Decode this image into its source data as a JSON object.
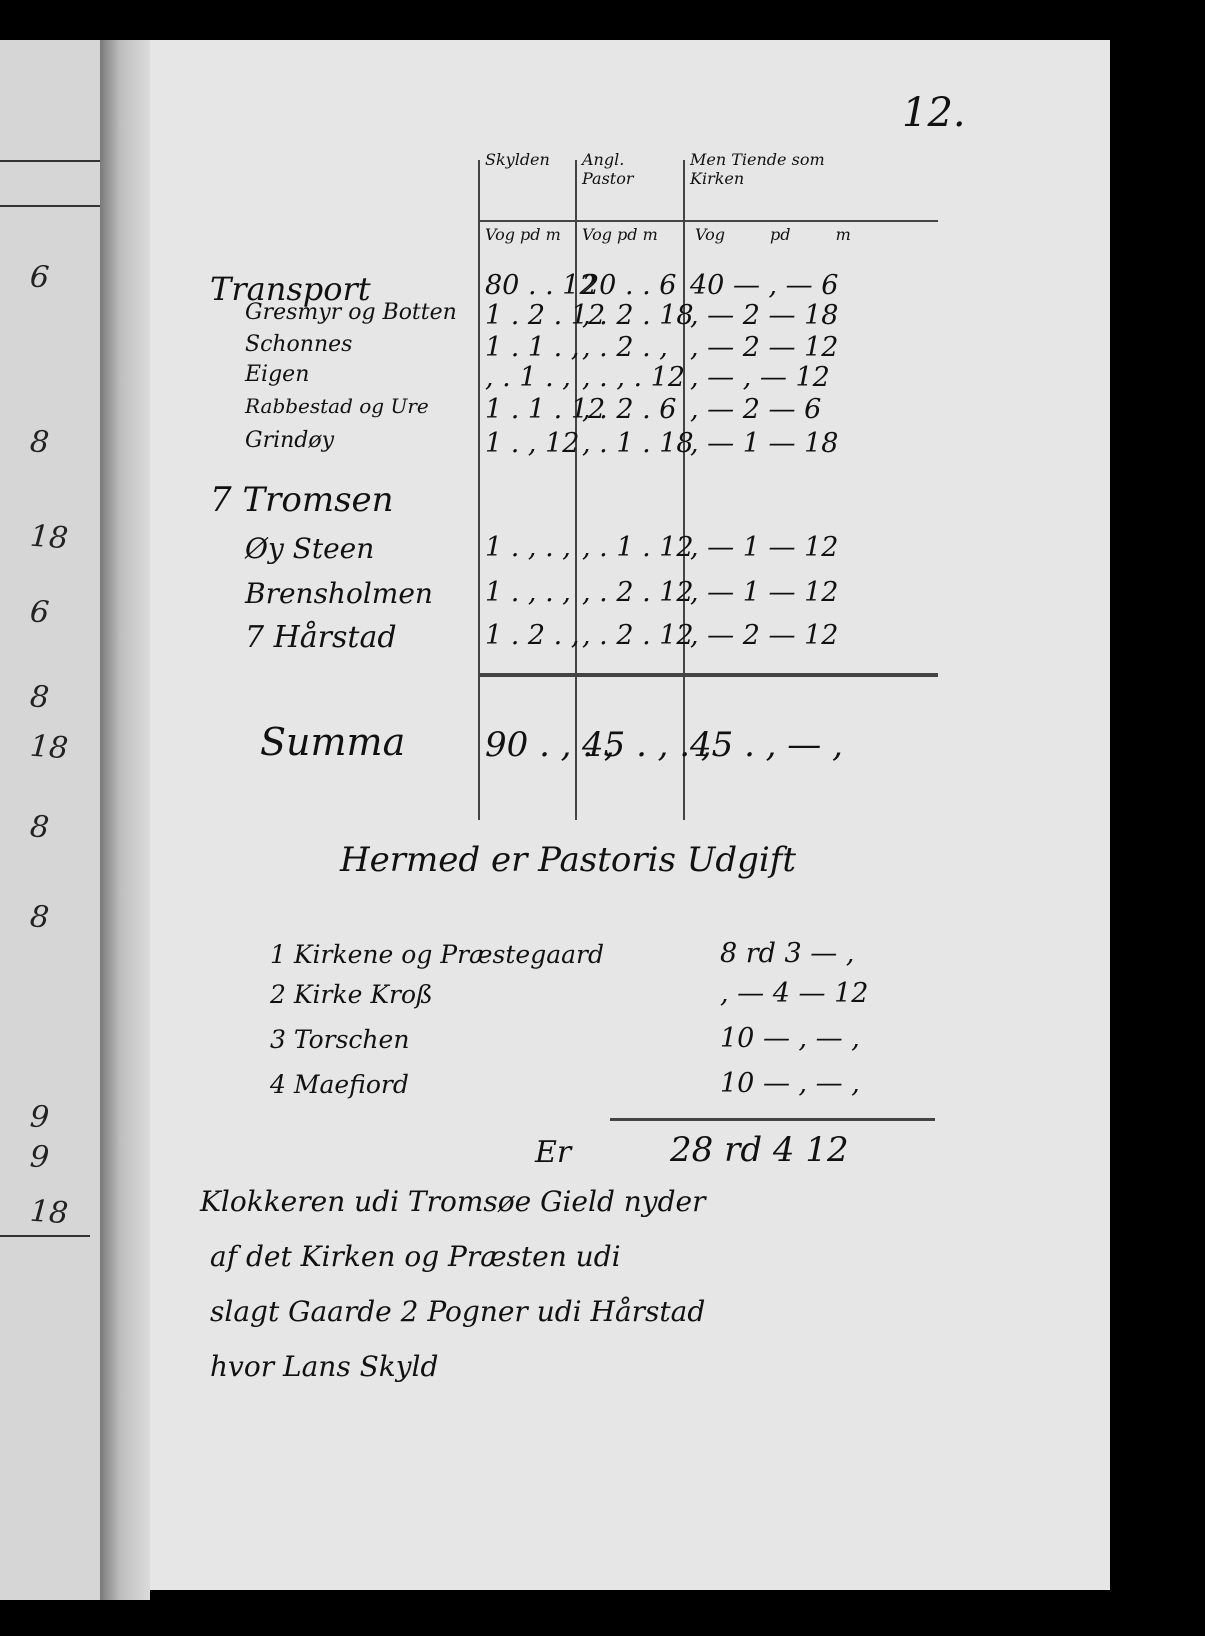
{
  "page_number": "12.",
  "left_page_fragments": [
    "6",
    "8",
    "18",
    "6",
    "8",
    "18",
    "8",
    "8",
    "9",
    "9",
    "18"
  ],
  "table": {
    "headers": [
      "Skylden",
      "Angl. Pastor",
      "Men Tiende som Kirken"
    ],
    "units": [
      "Vog pd m",
      "Vog pd m",
      "Vog pd m"
    ],
    "rows": [
      {
        "label": "Transport",
        "c1": "80 . . 12",
        "c2": "20 . . 6",
        "c3": "40 — , — 6"
      },
      {
        "label": "Gresmyr og Botten",
        "c1": "1 . 2 . 12",
        "c2": ", . 2 . 18",
        "c3": ", — 2 — 18"
      },
      {
        "label": "Schonnes",
        "c1": "1 . 1 . ,",
        "c2": ", . 2 . ,",
        "c3": ", — 2 — 12"
      },
      {
        "label": "Eigen",
        "c1": ", . 1 . ,",
        "c2": ", . , . 12",
        "c3": ", — , — 12"
      },
      {
        "label": "Rabbestad og Ure",
        "c1": "1 . 1 . 12",
        "c2": ", . 2 . 6",
        "c3": ", — 2 — 6"
      },
      {
        "label": "Grindøy",
        "c1": "1 . , 12",
        "c2": ", . 1 . 18",
        "c3": ", — 1 — 18"
      },
      {
        "label": "7 Tromsen",
        "c1": "",
        "c2": "",
        "c3": ""
      },
      {
        "label": "Øy Steen",
        "c1": "1 . , . ,",
        "c2": ", . 1 . 12",
        "c3": ", — 1 — 12"
      },
      {
        "label": "Brensholmen",
        "c1": "1 . , . ,",
        "c2": ", . 2 . 12",
        "c3": ", — 1 — 12"
      },
      {
        "label": "7 Hårstad",
        "c1": "1 . 2 . ,",
        "c2": ", . 2 . 12",
        "c3": ", — 2 — 12"
      }
    ],
    "summa": {
      "label": "Summa",
      "c1": "90 . , . ,",
      "c2": "45 . , . ,",
      "c3": "45 . , — ,"
    }
  },
  "section_title": "Hermed er Pastoris Udgift",
  "expenses": [
    {
      "label": "1 Kirkene og Præstegaard",
      "value": "8 rd 3 — ,"
    },
    {
      "label": "2 Kirke Kroß",
      "value": ", — 4 — 12"
    },
    {
      "label": "3 Torschen",
      "value": "10 — , — ,"
    },
    {
      "label": "4 Maefiord",
      "value": "10 — , — ,"
    }
  ],
  "expense_total": {
    "label": "Er",
    "value": "28 rd 4 12"
  },
  "closing_text": [
    "Klokkeren udi Tromsøe Gield nyder",
    "af det Kirken og Præsten udi",
    "slagt Gaarde 2 Pogner udi Hårstad",
    "hvor Lans Skyld"
  ]
}
